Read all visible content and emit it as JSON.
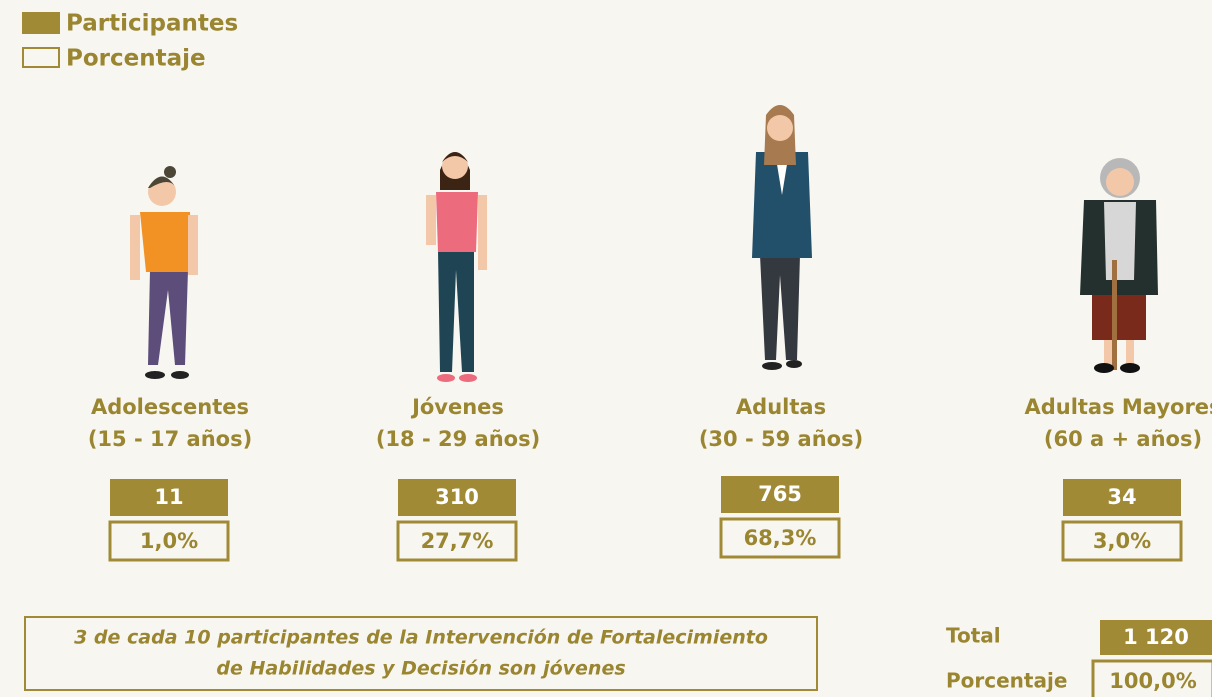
{
  "legend": {
    "participants": "Participantes",
    "percentage": "Porcentaje"
  },
  "groups": [
    {
      "label": "Adolescentes",
      "range": "(15 - 17 años)",
      "participants": "11",
      "percentage": "1,0%"
    },
    {
      "label": "Jóvenes",
      "range": "(18 - 29 años)",
      "participants": "310",
      "percentage": "27,7%"
    },
    {
      "label": "Adultas",
      "range": "(30 - 59 años)",
      "participants": "765",
      "percentage": "68,3%"
    },
    {
      "label": "Adultas Mayores",
      "range": "(60 a + años)",
      "participants": "34",
      "percentage": "3,0%"
    }
  ],
  "note": {
    "line1": "3 de cada 10 participantes de la Intervención de Fortalecimiento",
    "line2": "de Habilidades y Decisión son jóvenes"
  },
  "total": {
    "label": "Total",
    "participants": "1 120",
    "percentage_label": "Porcentaje",
    "percentage": "100,0%"
  }
}
